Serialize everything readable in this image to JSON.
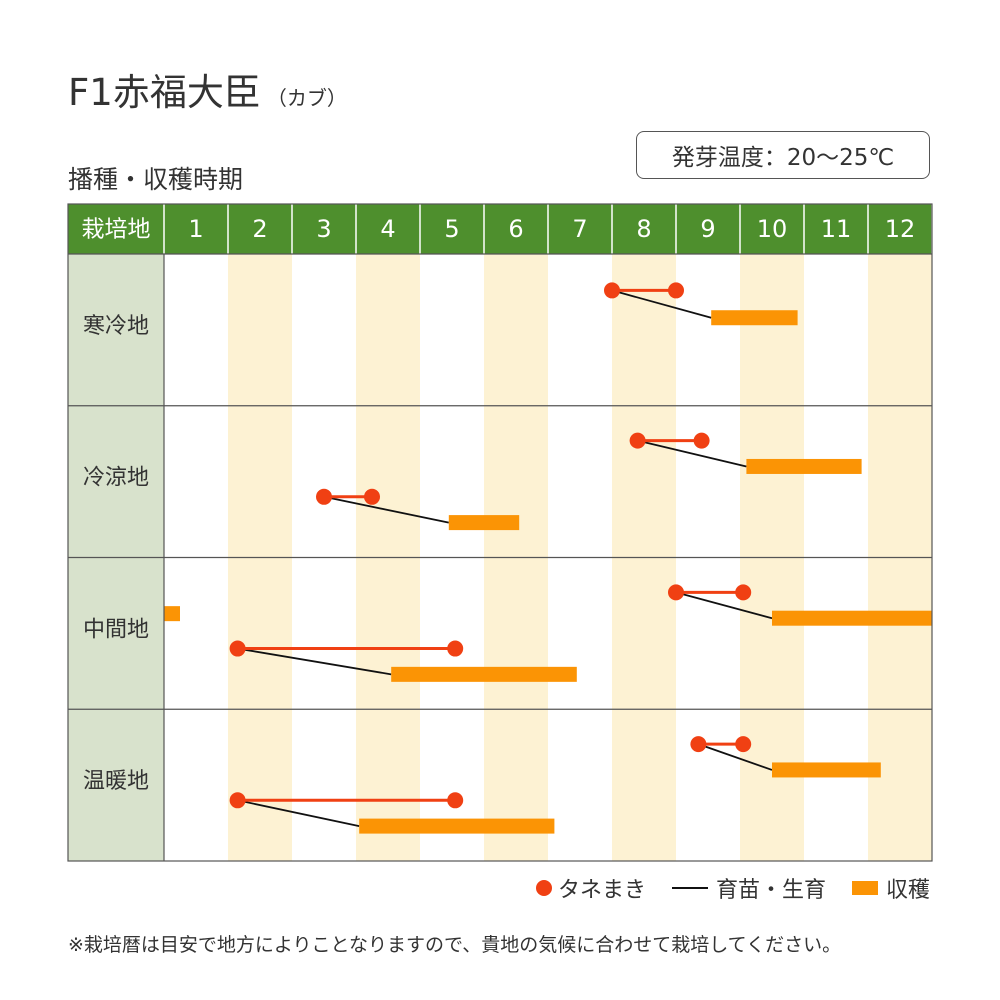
{
  "title": {
    "main": "F1赤福大臣",
    "sub": "（カブ）"
  },
  "subtitle": "播種・収穫時期",
  "temp_note": "発芽温度：20～25℃",
  "colors": {
    "header_green": "#4e8f2d",
    "region_bg": "#d8e2cc",
    "alt_column": "#fdf2d3",
    "sowing_red": "#f04013",
    "harvest_orange": "#fb9405",
    "growth_black": "#111111",
    "grid": "#555555"
  },
  "chart_data": {
    "type": "gantt",
    "header_label": "栽培地",
    "months": [
      "1",
      "2",
      "3",
      "4",
      "5",
      "6",
      "7",
      "8",
      "9",
      "10",
      "11",
      "12"
    ],
    "rows": [
      {
        "region": "寒冷地",
        "schedules": [
          {
            "sow": [
              8.0,
              9.0
            ],
            "harvest": [
              9.55,
              10.9
            ]
          }
        ]
      },
      {
        "region": "冷涼地",
        "schedules": [
          {
            "sow": [
              8.4,
              9.4
            ],
            "harvest": [
              10.1,
              11.9
            ]
          },
          {
            "sow": [
              3.5,
              4.25
            ],
            "harvest": [
              5.45,
              6.55
            ]
          }
        ]
      },
      {
        "region": "中間地",
        "schedules": [
          {
            "sow": [
              9.0,
              10.05
            ],
            "harvest": [
              10.5,
              13.0
            ]
          },
          {
            "sow": [
              2.15,
              5.55
            ],
            "harvest": [
              4.55,
              7.45
            ],
            "harvest_extra": [
              1.0,
              1.25
            ]
          }
        ]
      },
      {
        "region": "温暖地",
        "schedules": [
          {
            "sow": [
              9.35,
              10.05
            ],
            "harvest": [
              10.5,
              12.2
            ]
          },
          {
            "sow": [
              2.15,
              5.55
            ],
            "harvest": [
              4.05,
              7.1
            ]
          }
        ]
      }
    ],
    "legend": {
      "sowing": "タネまき",
      "growth": "育苗・生育",
      "harvest": "収穫"
    }
  },
  "footnote": "※栽培暦は目安で地方によりことなりますので、貴地の気候に合わせて栽培してください。"
}
